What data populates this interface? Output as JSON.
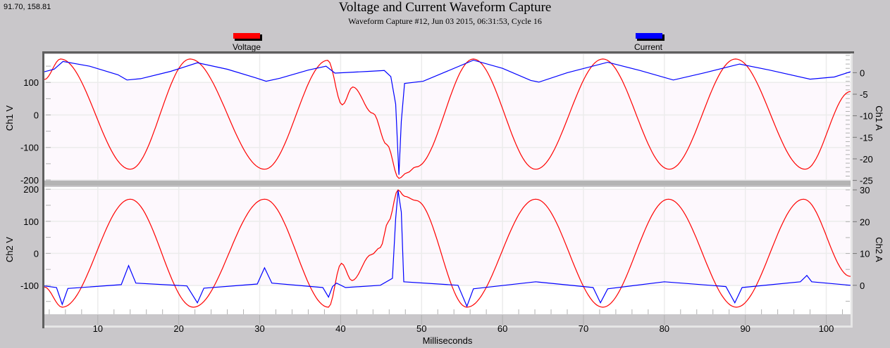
{
  "cursor_readout": "91.70, 158.81",
  "chart_data": {
    "type": "line",
    "title": "Voltage and Current Waveform Capture",
    "subtitle": "Waveform Capture #12, Jun 03 2015, 06:31:53,  Cycle 16",
    "legend": {
      "placement": "top",
      "entries": [
        {
          "name": "Voltage",
          "color": "#ff0000"
        },
        {
          "name": "Current",
          "color": "#0000ff"
        }
      ]
    },
    "xlabel": "Milliseconds",
    "xlim": [
      3.4,
      103.0
    ],
    "xticks": [
      10,
      20,
      30,
      40,
      50,
      60,
      70,
      80,
      90,
      100
    ],
    "grid": true,
    "panels": [
      {
        "ylabel_left": "Ch1 V",
        "ylabel_right": "Ch1 A",
        "ylim_left": [
          -200,
          187
        ],
        "yticks_left": [
          -200,
          -100,
          0,
          100
        ],
        "ylim_right": [
          -24.9,
          4.3
        ],
        "yticks_right": [
          -25,
          -20,
          -15,
          -10,
          -5,
          0
        ],
        "series": [
          {
            "name": "Voltage",
            "axis": "left",
            "color": "#ff0000",
            "points": [
              [
                3.4,
                109
              ],
              [
                5.4,
                172
              ],
              [
                14.0,
                -167
              ],
              [
                21.4,
                172
              ],
              [
                30.6,
                -167
              ],
              [
                38.4,
                168
              ],
              [
                40.2,
                31
              ],
              [
                41.5,
                86
              ],
              [
                44.0,
                5
              ],
              [
                45.7,
                -91
              ],
              [
                47.2,
                -195
              ],
              [
                48.2,
                -178
              ],
              [
                49.3,
                -160
              ],
              [
                56.4,
                172
              ],
              [
                64.1,
                -167
              ],
              [
                72.4,
                172
              ],
              [
                80.6,
                -167
              ],
              [
                88.8,
                172
              ],
              [
                97.4,
                -167
              ],
              [
                103.0,
                72
              ]
            ]
          },
          {
            "name": "Current",
            "axis": "right",
            "color": "#0000ff",
            "points": [
              [
                3.4,
                0.2
              ],
              [
                4.6,
                0.8
              ],
              [
                5.7,
                2.6
              ],
              [
                9.0,
                1.5
              ],
              [
                12.5,
                -0.5
              ],
              [
                13.6,
                -1.7
              ],
              [
                15.3,
                -1.4
              ],
              [
                19.0,
                0.3
              ],
              [
                22.3,
                2.3
              ],
              [
                26.0,
                0.8
              ],
              [
                29.5,
                -1.2
              ],
              [
                30.8,
                -2.0
              ],
              [
                32.5,
                -1.3
              ],
              [
                36.0,
                0.6
              ],
              [
                38.2,
                1.5
              ],
              [
                39.3,
                -0.1
              ],
              [
                43.5,
                0.3
              ],
              [
                45.4,
                0.5
              ],
              [
                46.2,
                -0.9
              ],
              [
                46.8,
                -7.3
              ],
              [
                47.2,
                -23.7
              ],
              [
                47.5,
                -11.3
              ],
              [
                47.9,
                -2.5
              ],
              [
                50.2,
                -2.0
              ],
              [
                53.0,
                0.2
              ],
              [
                56.4,
                2.9
              ],
              [
                60.0,
                1.0
              ],
              [
                63.5,
                -1.8
              ],
              [
                64.5,
                -2.2
              ],
              [
                68.0,
                0.0
              ],
              [
                73.0,
                2.4
              ],
              [
                77.0,
                0.5
              ],
              [
                81.1,
                -1.7
              ],
              [
                85.0,
                0.0
              ],
              [
                89.3,
                2.0
              ],
              [
                93.0,
                0.6
              ],
              [
                98.0,
                -1.5
              ],
              [
                101.0,
                -1.0
              ],
              [
                103.0,
                0.2
              ]
            ]
          }
        ]
      },
      {
        "ylabel_left": "Ch2 V",
        "ylabel_right": "Ch2 A",
        "ylim_left": [
          -190,
          207
        ],
        "yticks_left": [
          -100,
          0,
          100,
          200
        ],
        "ylim_right": [
          -9.1,
          30.9
        ],
        "yticks_right": [
          0,
          10,
          20,
          30
        ],
        "series": [
          {
            "name": "Voltage",
            "axis": "left",
            "color": "#ff0000",
            "points": [
              [
                3.4,
                -105
              ],
              [
                5.6,
                -168
              ],
              [
                14.0,
                169
              ],
              [
                21.8,
                -168
              ],
              [
                30.6,
                169
              ],
              [
                38.5,
                -168
              ],
              [
                40.1,
                -31
              ],
              [
                41.4,
                -85
              ],
              [
                43.8,
                -4
              ],
              [
                44.9,
                18
              ],
              [
                45.9,
                99
              ],
              [
                47.1,
                198
              ],
              [
                47.9,
                178
              ],
              [
                49.3,
                165
              ],
              [
                55.6,
                -168
              ],
              [
                64.1,
                169
              ],
              [
                72.4,
                -168
              ],
              [
                80.5,
                169
              ],
              [
                88.9,
                -168
              ],
              [
                97.2,
                169
              ],
              [
                103.0,
                -72
              ]
            ]
          },
          {
            "name": "Current",
            "axis": "right",
            "color": "#0000ff",
            "points": [
              [
                3.4,
                -0.2
              ],
              [
                4.9,
                -0.7
              ],
              [
                5.6,
                -6.0
              ],
              [
                6.3,
                -1.0
              ],
              [
                12.9,
                0.2
              ],
              [
                13.8,
                6.2
              ],
              [
                14.7,
                0.7
              ],
              [
                21.0,
                -0.2
              ],
              [
                22.3,
                -5.5
              ],
              [
                23.1,
                -0.9
              ],
              [
                29.7,
                0.4
              ],
              [
                30.6,
                5.5
              ],
              [
                31.5,
                0.7
              ],
              [
                37.8,
                -0.7
              ],
              [
                38.5,
                -3.7
              ],
              [
                39.0,
                -0.4
              ],
              [
                39.5,
                0.7
              ],
              [
                40.6,
                -0.7
              ],
              [
                44.9,
                0.0
              ],
              [
                46.4,
                2.2
              ],
              [
                46.8,
                21
              ],
              [
                47.1,
                29.8
              ],
              [
                47.5,
                23
              ],
              [
                47.8,
                1.1
              ],
              [
                54.5,
                0.0
              ],
              [
                55.6,
                -6.6
              ],
              [
                56.4,
                -1.1
              ],
              [
                64.1,
                1.1
              ],
              [
                71.2,
                -0.7
              ],
              [
                72.1,
                -5.5
              ],
              [
                73.0,
                -1.1
              ],
              [
                80.0,
                1.1
              ],
              [
                87.6,
                -0.4
              ],
              [
                88.7,
                -5.5
              ],
              [
                89.6,
                -0.7
              ],
              [
                96.8,
                1.1
              ],
              [
                97.6,
                3.1
              ],
              [
                98.2,
                1.1
              ],
              [
                103.0,
                0.0
              ]
            ]
          }
        ]
      }
    ]
  }
}
